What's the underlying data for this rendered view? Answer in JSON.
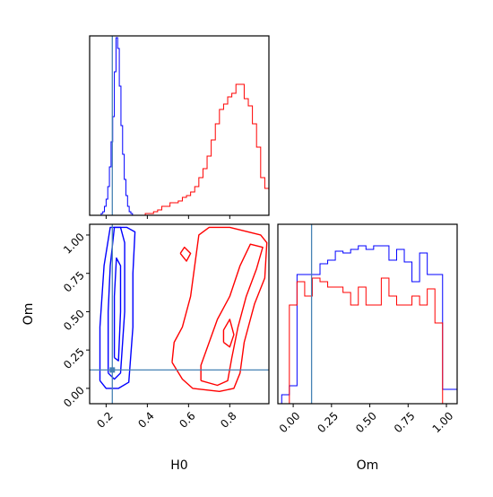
{
  "colors": {
    "series_blue": "#0000ff",
    "series_red": "#ff0000",
    "truth_line": "#4682b4",
    "axes": "#000000"
  },
  "chart_data": [
    {
      "panel": "H0 marginal",
      "type": "histogram",
      "xlim": [
        0.12,
        0.99
      ],
      "xticks": [
        0.2,
        0.4,
        0.6,
        0.8
      ],
      "xtick_labels_shown": false,
      "yticks_shown": false,
      "truth_x": 0.23,
      "series": [
        {
          "color": "blue",
          "x": [
            0.18,
            0.188,
            0.196,
            0.204,
            0.212,
            0.22,
            0.228,
            0.236,
            0.244,
            0.252,
            0.26,
            0.268,
            0.276,
            0.284,
            0.292,
            0.3,
            0.308,
            0.316,
            0.324
          ],
          "y": [
            0.01,
            0.02,
            0.05,
            0.09,
            0.16,
            0.27,
            0.41,
            0.55,
            0.8,
            0.99,
            0.93,
            0.72,
            0.5,
            0.34,
            0.2,
            0.11,
            0.05,
            0.02,
            0.01
          ]
        },
        {
          "color": "red",
          "x": [
            0.38,
            0.4,
            0.42,
            0.44,
            0.46,
            0.48,
            0.5,
            0.52,
            0.54,
            0.56,
            0.58,
            0.6,
            0.62,
            0.64,
            0.66,
            0.68,
            0.7,
            0.72,
            0.74,
            0.76,
            0.78,
            0.8,
            0.82,
            0.84,
            0.86,
            0.88,
            0.9,
            0.92,
            0.94,
            0.96,
            0.98
          ],
          "y": [
            0.0,
            0.01,
            0.01,
            0.02,
            0.03,
            0.05,
            0.05,
            0.07,
            0.07,
            0.08,
            0.1,
            0.11,
            0.13,
            0.16,
            0.21,
            0.26,
            0.33,
            0.42,
            0.51,
            0.59,
            0.62,
            0.66,
            0.68,
            0.73,
            0.73,
            0.65,
            0.61,
            0.51,
            0.38,
            0.21,
            0.15
          ]
        }
      ]
    },
    {
      "panel": "H0 vs Om contours",
      "type": "contour",
      "xlabel": "H0",
      "ylabel": "Om",
      "xlim": [
        0.12,
        0.99
      ],
      "ylim": [
        -0.1,
        1.07
      ],
      "xticks": [
        0.2,
        0.4,
        0.6,
        0.8
      ],
      "xtick_labels": [
        "0.2",
        "0.4",
        "0.6",
        "0.8"
      ],
      "yticks": [
        0.0,
        0.25,
        0.5,
        0.75,
        1.0
      ],
      "ytick_labels": [
        "0.00",
        "0.25",
        "0.50",
        "0.75",
        "1.00"
      ],
      "truth": [
        0.23,
        0.12
      ],
      "series": [
        {
          "color": "blue",
          "contours": [
            [
              [
                0.17,
                0.05
              ],
              [
                0.2,
                0.0
              ],
              [
                0.26,
                0.0
              ],
              [
                0.31,
                0.04
              ],
              [
                0.33,
                0.4
              ],
              [
                0.33,
                0.75
              ],
              [
                0.34,
                1.02
              ],
              [
                0.3,
                1.05
              ],
              [
                0.22,
                1.05
              ],
              [
                0.19,
                0.8
              ],
              [
                0.17,
                0.4
              ],
              [
                0.17,
                0.05
              ]
            ],
            [
              [
                0.21,
                0.1
              ],
              [
                0.24,
                0.06
              ],
              [
                0.27,
                0.1
              ],
              [
                0.29,
                0.5
              ],
              [
                0.29,
                0.95
              ],
              [
                0.27,
                1.05
              ],
              [
                0.24,
                1.05
              ],
              [
                0.22,
                0.8
              ],
              [
                0.21,
                0.5
              ],
              [
                0.21,
                0.1
              ]
            ],
            [
              [
                0.24,
                0.2
              ],
              [
                0.26,
                0.18
              ],
              [
                0.27,
                0.5
              ],
              [
                0.27,
                0.8
              ],
              [
                0.25,
                0.85
              ],
              [
                0.24,
                0.6
              ],
              [
                0.24,
                0.2
              ]
            ]
          ]
        },
        {
          "color": "red",
          "contours": [
            [
              [
                0.52,
                0.17
              ],
              [
                0.57,
                0.06
              ],
              [
                0.62,
                0.0
              ],
              [
                0.75,
                -0.02
              ],
              [
                0.82,
                0.0
              ],
              [
                0.85,
                0.1
              ],
              [
                0.87,
                0.3
              ],
              [
                0.92,
                0.55
              ],
              [
                0.97,
                0.72
              ],
              [
                0.98,
                0.95
              ],
              [
                0.95,
                1.0
              ],
              [
                0.8,
                1.05
              ],
              [
                0.7,
                1.05
              ],
              [
                0.65,
                1.0
              ],
              [
                0.63,
                0.8
              ],
              [
                0.61,
                0.6
              ],
              [
                0.57,
                0.4
              ],
              [
                0.53,
                0.3
              ],
              [
                0.52,
                0.17
              ]
            ],
            [
              [
                0.66,
                0.05
              ],
              [
                0.74,
                0.02
              ],
              [
                0.79,
                0.05
              ],
              [
                0.81,
                0.2
              ],
              [
                0.84,
                0.4
              ],
              [
                0.88,
                0.6
              ],
              [
                0.93,
                0.78
              ],
              [
                0.96,
                0.92
              ],
              [
                0.9,
                0.94
              ],
              [
                0.85,
                0.8
              ],
              [
                0.8,
                0.6
              ],
              [
                0.74,
                0.45
              ],
              [
                0.7,
                0.3
              ],
              [
                0.66,
                0.15
              ],
              [
                0.66,
                0.05
              ]
            ],
            [
              [
                0.56,
                0.88
              ],
              [
                0.59,
                0.83
              ],
              [
                0.61,
                0.88
              ],
              [
                0.58,
                0.92
              ],
              [
                0.56,
                0.88
              ]
            ],
            [
              [
                0.77,
                0.3
              ],
              [
                0.8,
                0.27
              ],
              [
                0.82,
                0.35
              ],
              [
                0.8,
                0.45
              ],
              [
                0.77,
                0.38
              ],
              [
                0.77,
                0.3
              ]
            ]
          ]
        }
      ]
    },
    {
      "panel": "Om marginal",
      "type": "histogram",
      "xlabel": "Om",
      "xlim": [
        -0.1,
        1.07
      ],
      "xticks": [
        0.0,
        0.25,
        0.5,
        0.75,
        1.0
      ],
      "xtick_labels": [
        "0.00",
        "0.25",
        "0.50",
        "0.75",
        "1.00"
      ],
      "yticks_shown": false,
      "truth_x": 0.12,
      "series": [
        {
          "color": "blue",
          "x": [
            -0.05,
            0.0,
            0.05,
            0.1,
            0.15,
            0.2,
            0.25,
            0.3,
            0.35,
            0.4,
            0.45,
            0.5,
            0.55,
            0.6,
            0.65,
            0.7,
            0.75,
            0.8,
            0.85,
            0.9,
            0.95,
            1.0,
            1.05
          ],
          "y": [
            0.05,
            0.1,
            0.72,
            0.72,
            0.72,
            0.78,
            0.8,
            0.85,
            0.84,
            0.86,
            0.88,
            0.86,
            0.88,
            0.88,
            0.8,
            0.86,
            0.79,
            0.68,
            0.84,
            0.72,
            0.72,
            0.08,
            0.08
          ]
        },
        {
          "color": "red",
          "x": [
            -0.05,
            0.0,
            0.05,
            0.1,
            0.15,
            0.2,
            0.25,
            0.3,
            0.35,
            0.4,
            0.45,
            0.5,
            0.55,
            0.6,
            0.65,
            0.7,
            0.75,
            0.8,
            0.85,
            0.9,
            0.95,
            1.0
          ],
          "y": [
            0.0,
            0.55,
            0.68,
            0.6,
            0.7,
            0.68,
            0.65,
            0.65,
            0.62,
            0.55,
            0.65,
            0.55,
            0.55,
            0.7,
            0.6,
            0.55,
            0.55,
            0.6,
            0.55,
            0.64,
            0.45,
            0.0
          ]
        }
      ]
    }
  ]
}
